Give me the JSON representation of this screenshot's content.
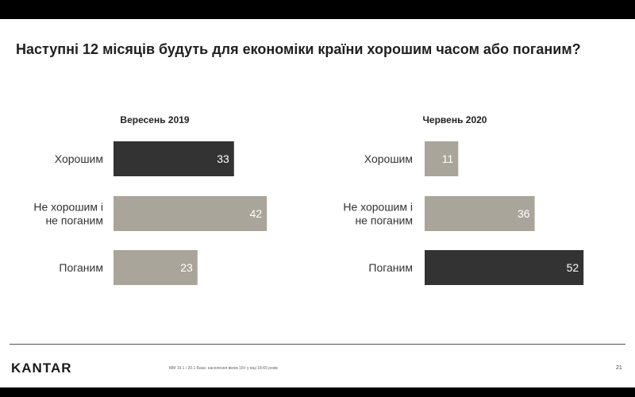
{
  "title": "Наступні 12 місяців будуть для економіки країни хорошим часом або поганим?",
  "colors": {
    "dark": "#333333",
    "light": "#aaa59a",
    "text": "#333333",
    "value": "#ffffff"
  },
  "chart_data": [
    {
      "type": "bar",
      "orientation": "horizontal",
      "title": "Вересень 2019",
      "categories": [
        "Хорошим",
        "Не хорошим і не поганим",
        "Поганим"
      ],
      "category_lines": [
        [
          "Хорошим"
        ],
        [
          "Не хорошим і",
          "не поганим"
        ],
        [
          "Поганим"
        ]
      ],
      "values": [
        33,
        42,
        23
      ],
      "bar_colors": [
        "#333333",
        "#aaa59a",
        "#aaa59a"
      ],
      "xlim": [
        0,
        100
      ]
    },
    {
      "type": "bar",
      "orientation": "horizontal",
      "title": "Червень 2020",
      "categories": [
        "Хорошим",
        "Не хорошим і не поганим",
        "Поганим"
      ],
      "category_lines": [
        [
          "Хорошим"
        ],
        [
          "Не хорошим і",
          "не поганим"
        ],
        [
          "Поганим"
        ]
      ],
      "values": [
        11,
        36,
        52
      ],
      "bar_colors": [
        "#aaa59a",
        "#aaa59a",
        "#333333"
      ],
      "xlim": [
        0,
        100
      ]
    }
  ],
  "footer": {
    "logo": "KANTAR",
    "note": "ММ 19.1 / 20.1 База: населення віком 18+ у віці 18-65 років",
    "page": "21"
  }
}
